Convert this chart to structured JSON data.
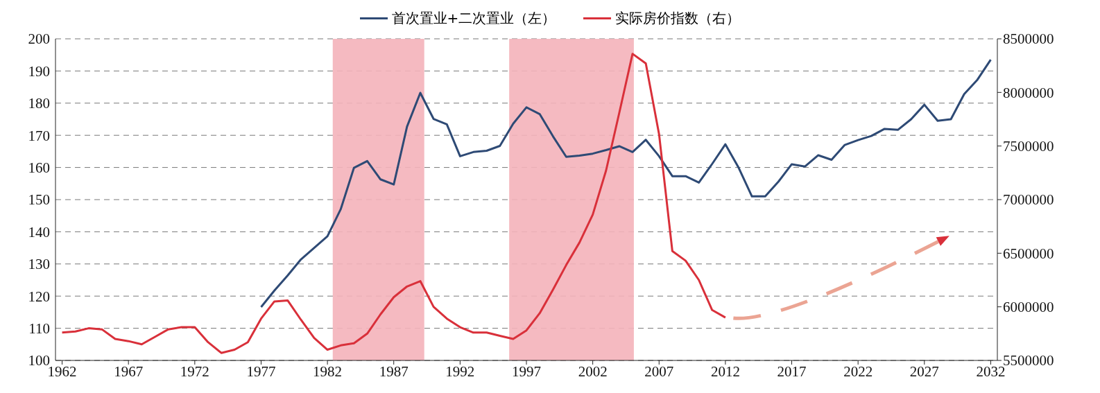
{
  "chart_data": {
    "type": "line",
    "legend": "top",
    "grid": "y",
    "x": [
      1962,
      1963,
      1964,
      1965,
      1966,
      1967,
      1968,
      1969,
      1970,
      1971,
      1972,
      1973,
      1974,
      1975,
      1976,
      1977,
      1978,
      1979,
      1980,
      1981,
      1982,
      1983,
      1984,
      1985,
      1986,
      1987,
      1988,
      1989,
      1990,
      1991,
      1992,
      1993,
      1994,
      1995,
      1996,
      1997,
      1998,
      1999,
      2000,
      2001,
      2002,
      2003,
      2004,
      2005,
      2006,
      2007,
      2008,
      2009,
      2010,
      2011,
      2012,
      2013,
      2014,
      2015,
      2016,
      2017,
      2018,
      2019,
      2020,
      2021,
      2022,
      2023,
      2024,
      2025,
      2026,
      2027,
      2028,
      2029,
      2030,
      2031,
      2032
    ],
    "xlim": [
      1961.5,
      2032.5
    ],
    "xticks": [
      1962,
      1967,
      1972,
      1977,
      1982,
      1987,
      1992,
      1997,
      2002,
      2007,
      2012,
      2017,
      2022,
      2027,
      2032
    ],
    "ylim": [
      100,
      200
    ],
    "yticks": [
      100,
      110,
      120,
      130,
      140,
      150,
      160,
      170,
      180,
      190,
      200
    ],
    "y2lim": [
      5500000,
      8500000
    ],
    "y2ticks": [
      5500000,
      6000000,
      6500000,
      7000000,
      7500000,
      8000000,
      8500000
    ],
    "series": [
      {
        "name": "首次置业+二次置业（左）",
        "color": "#2e4a75",
        "values": [
          null,
          null,
          null,
          null,
          null,
          null,
          null,
          null,
          null,
          null,
          null,
          null,
          null,
          null,
          null,
          116.6,
          121.7,
          126.4,
          131.4,
          135,
          138.6,
          147,
          159.9,
          162,
          156.3,
          154.7,
          172.7,
          183.2,
          175.1,
          173.4,
          163.5,
          164.8,
          165.2,
          166.7,
          173.6,
          178.7,
          176.6,
          169.7,
          163.3,
          163.7,
          164.3,
          165.4,
          166.6,
          164.8,
          168.6,
          163.5,
          157.3,
          157.3,
          155.3,
          161.1,
          167.2,
          159.9,
          151,
          151,
          155.6,
          161,
          160.3,
          163.8,
          162.4,
          167,
          168.5,
          169.8,
          172,
          171.7,
          175,
          179.5,
          174.5,
          175,
          182.8,
          187.3,
          193.5
        ]
      },
      {
        "name": "实际房价指数（右）",
        "color": "#d9303a",
        "axis": "y2",
        "values": [
          5760000,
          5770000,
          5800000,
          5790000,
          5700000,
          5680000,
          5650000,
          5720000,
          5790000,
          5810000,
          5810000,
          5670000,
          5570000,
          5600000,
          5670000,
          5890000,
          6050000,
          6060000,
          5880000,
          5710000,
          5600000,
          5640000,
          5660000,
          5750000,
          5930000,
          6090000,
          6190000,
          6240000,
          6000000,
          5890000,
          5810000,
          5760000,
          5760000,
          5730000,
          5700000,
          5780000,
          5940000,
          6160000,
          6390000,
          6600000,
          6860000,
          7270000,
          7810000,
          8360000,
          8270000,
          7610000,
          6520000,
          6430000,
          6250000,
          5970000,
          5900000,
          null,
          null,
          null,
          null,
          null,
          null,
          null,
          null,
          null,
          null,
          null,
          null,
          null,
          null,
          null,
          null,
          null,
          null,
          null,
          null
        ]
      }
    ],
    "bands": [
      {
        "axis": "x",
        "from": 1982.4,
        "to": 1989.3,
        "color": "#f4b3ba"
      },
      {
        "axis": "x",
        "from": 1995.7,
        "to": 2005.1,
        "color": "#f4b3ba"
      }
    ]
  }
}
